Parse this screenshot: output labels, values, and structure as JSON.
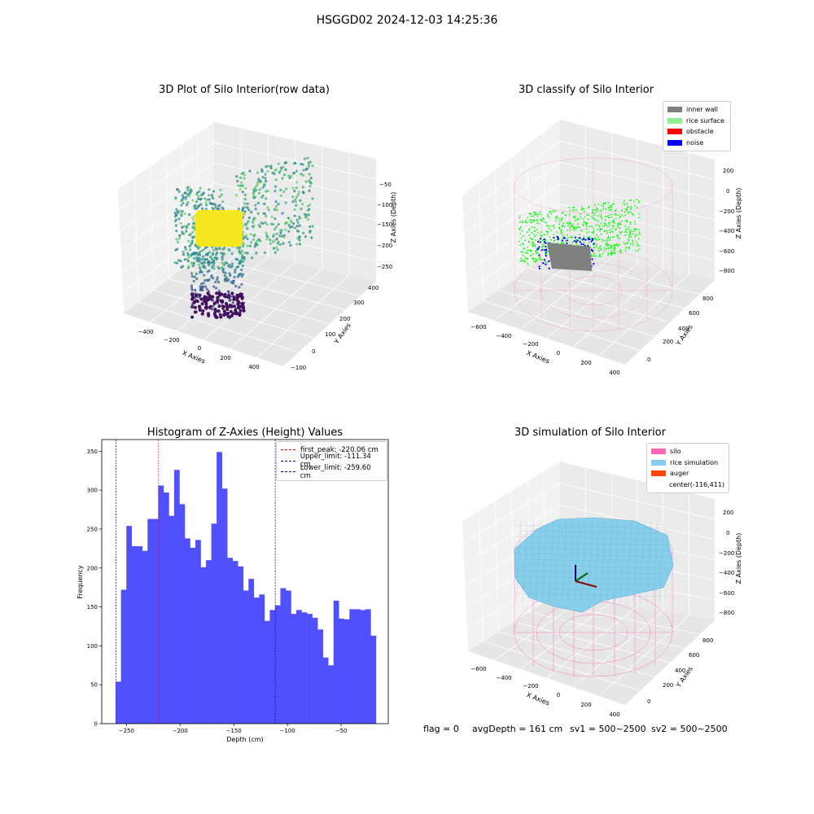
{
  "suptitle": "HSGGD02 2024-12-03 14:25:36",
  "chart_data": [
    {
      "type": "scatter",
      "title": "3D Plot of Silo Interior(row data)",
      "xlabel": "X Axies",
      "ylabel": "Y Axies",
      "zlabel": "Z Axies (Depth)",
      "x_ticks": [
        "−400",
        "−200",
        "0",
        "200",
        "400"
      ],
      "y_ticks": [
        "−100",
        "0",
        "100",
        "200",
        "300",
        "400"
      ],
      "z_ticks": [
        "−50",
        "−100",
        "−150",
        "−200",
        "−250"
      ],
      "colormap": "viridis"
    },
    {
      "type": "scatter",
      "title": "3D classify of Silo Interior",
      "xlabel": "X Axies",
      "ylabel": "Y Axies",
      "zlabel": "Z Axies (Depth)",
      "x_ticks": [
        "−600",
        "−400",
        "−200",
        "0",
        "200",
        "400"
      ],
      "y_ticks": [
        "0",
        "200",
        "400",
        "600",
        "800"
      ],
      "z_ticks": [
        "200",
        "0",
        "−200",
        "−400",
        "−600",
        "−800"
      ],
      "legend": [
        {
          "label": "inner wall",
          "color": "#808080"
        },
        {
          "label": "rice surface",
          "color": "#90ee90"
        },
        {
          "label": "obstacle",
          "color": "#ff0000"
        },
        {
          "label": "noise",
          "color": "#0000ff"
        }
      ]
    },
    {
      "type": "bar",
      "title": "Histogram of Z-Axies (Height) Values",
      "xlabel": "Depth (cm)",
      "ylabel": "Frequency",
      "xlim": [
        -273,
        -6
      ],
      "ylim": [
        0,
        365
      ],
      "bin_start": -260,
      "bin_width": 4.95,
      "values": [
        54,
        172,
        254,
        228,
        228,
        222,
        263,
        263,
        306,
        297,
        267,
        326,
        282,
        238,
        226,
        236,
        201,
        210,
        257,
        349,
        302,
        213,
        209,
        202,
        171,
        186,
        162,
        166,
        132,
        146,
        152,
        174,
        171,
        141,
        146,
        143,
        141,
        136,
        121,
        85,
        75,
        158,
        135,
        134,
        147,
        147,
        146,
        147,
        113
      ],
      "x_ticks": [
        -250,
        -200,
        -150,
        -100,
        -50
      ],
      "y_ticks": [
        0,
        50,
        100,
        150,
        200,
        250,
        300,
        350
      ],
      "bar_color": "#5050ff",
      "vlines": [
        {
          "label": "first_peak: -220.06 cm",
          "x": -220.06,
          "color": "#ff0000"
        },
        {
          "label": "Upper_limit: -111.34 cm",
          "x": -111.34,
          "color": "#0000aa"
        },
        {
          "label": "Lower_limit: -259.60 cm",
          "x": -259.6,
          "color": "#0000aa"
        }
      ]
    },
    {
      "type": "surface",
      "title": "3D simulation of Silo Interior",
      "xlabel": "X Axies",
      "ylabel": "Y Axies",
      "zlabel": "Z Axies (Depth)",
      "x_ticks": [
        "−600",
        "−400",
        "−200",
        "0",
        "200",
        "400"
      ],
      "y_ticks": [
        "0",
        "200",
        "400",
        "600",
        "800"
      ],
      "z_ticks": [
        "200",
        "0",
        "−200",
        "−400",
        "−600",
        "−800"
      ],
      "legend": [
        {
          "label": "silo",
          "color": "#ff69b4"
        },
        {
          "label": "rice simulation",
          "color": "#87ceeb"
        },
        {
          "label": "auger",
          "color": "#ff4500"
        },
        {
          "label": "center(-116,411)",
          "color": ""
        }
      ]
    }
  ],
  "status": {
    "flag": "flag = 0",
    "avg_depth": "avgDepth = 161 cm",
    "sv1": "sv1 = 500~2500",
    "sv2": "sv2 = 500~2500"
  }
}
